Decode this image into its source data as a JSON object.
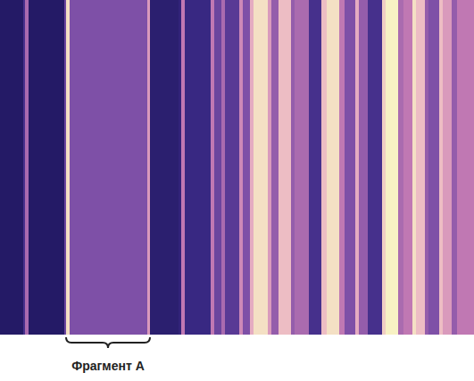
{
  "chart_data": {
    "type": "heatmap",
    "tick_labels": false,
    "bins": [
      0,
      26,
      28,
      32,
      72,
      74,
      78,
      165,
      168,
      200,
      203,
      207,
      236,
      240,
      248,
      252,
      268,
      272,
      280,
      284,
      300,
      304,
      312,
      326,
      330,
      346,
      360,
      366,
      380,
      386,
      398,
      402,
      412,
      428,
      432,
      446,
      452,
      462,
      466,
      476,
      480,
      492,
      496,
      506,
      512,
      531
    ],
    "values": [
      0.1,
      0.3,
      0.55,
      0.1,
      0.4,
      0.9,
      0.45,
      0.7,
      0.15,
      0.2,
      0.6,
      0.25,
      0.6,
      0.4,
      0.55,
      0.35,
      0.65,
      0.45,
      0.75,
      0.9,
      0.7,
      0.5,
      0.8,
      0.5,
      0.55,
      0.3,
      0.8,
      0.9,
      0.6,
      0.45,
      0.75,
      0.5,
      0.3,
      0.85,
      0.95,
      0.55,
      0.6,
      0.9,
      0.8,
      0.5,
      0.45,
      0.8,
      0.7,
      0.5,
      0.6
    ],
    "annotations": [
      {
        "text": "Фрагмент A",
        "x_start": 74,
        "x_end": 168
      }
    ]
  }
}
